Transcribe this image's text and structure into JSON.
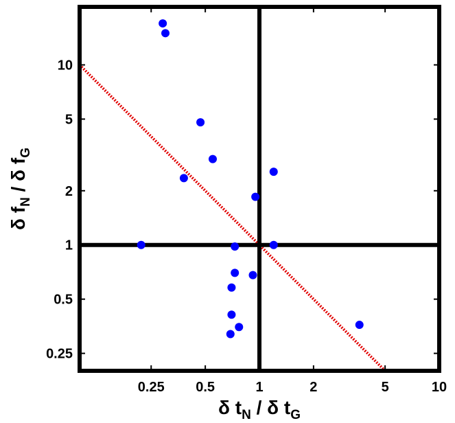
{
  "chart_data": {
    "type": "scatter",
    "title": "",
    "xlabel": {
      "greek": "δ",
      "var1": "t",
      "sub1": "N",
      "sep": "/",
      "var2": "t",
      "sub2": "G"
    },
    "ylabel": {
      "greek": "δ",
      "var1": "f",
      "sub1": "N",
      "sep": "/",
      "var2": "f",
      "sub2": "G"
    },
    "xscale": "log",
    "yscale": "log",
    "xlim": [
      0.1,
      10
    ],
    "ylim": [
      0.2,
      21
    ],
    "grid": false,
    "legend": "none",
    "xticks": [
      {
        "value": 0.25,
        "label": "0.25"
      },
      {
        "value": 0.5,
        "label": "0.5"
      },
      {
        "value": 1,
        "label": "1"
      },
      {
        "value": 2,
        "label": "2"
      },
      {
        "value": 5,
        "label": "5"
      },
      {
        "value": 10,
        "label": "10"
      }
    ],
    "yticks": [
      {
        "value": 0.25,
        "label": "0.25"
      },
      {
        "value": 0.5,
        "label": "0.5"
      },
      {
        "value": 1,
        "label": "1"
      },
      {
        "value": 2,
        "label": "2"
      },
      {
        "value": 5,
        "label": "5"
      },
      {
        "value": 10,
        "label": "10"
      }
    ],
    "reference_lines": {
      "x": 1,
      "y": 1,
      "color": "#000000"
    },
    "fit_line": {
      "points": [
        [
          0.1,
          10
        ],
        [
          5,
          0.2
        ]
      ],
      "color": "#e00000",
      "style": "dotted"
    },
    "series": [
      {
        "color": "#0000ff",
        "points": [
          {
            "x": 0.29,
            "y": 17.0
          },
          {
            "x": 0.3,
            "y": 15.0
          },
          {
            "x": 0.47,
            "y": 4.8
          },
          {
            "x": 0.55,
            "y": 3.0
          },
          {
            "x": 0.38,
            "y": 2.35
          },
          {
            "x": 0.22,
            "y": 1.0
          },
          {
            "x": 0.73,
            "y": 0.98
          },
          {
            "x": 0.73,
            "y": 0.7
          },
          {
            "x": 0.7,
            "y": 0.58
          },
          {
            "x": 0.92,
            "y": 0.68
          },
          {
            "x": 0.95,
            "y": 1.85
          },
          {
            "x": 1.2,
            "y": 2.55
          },
          {
            "x": 1.2,
            "y": 1.0
          },
          {
            "x": 0.7,
            "y": 0.41
          },
          {
            "x": 0.77,
            "y": 0.35
          },
          {
            "x": 0.69,
            "y": 0.32
          },
          {
            "x": 3.6,
            "y": 0.36
          }
        ]
      }
    ]
  }
}
